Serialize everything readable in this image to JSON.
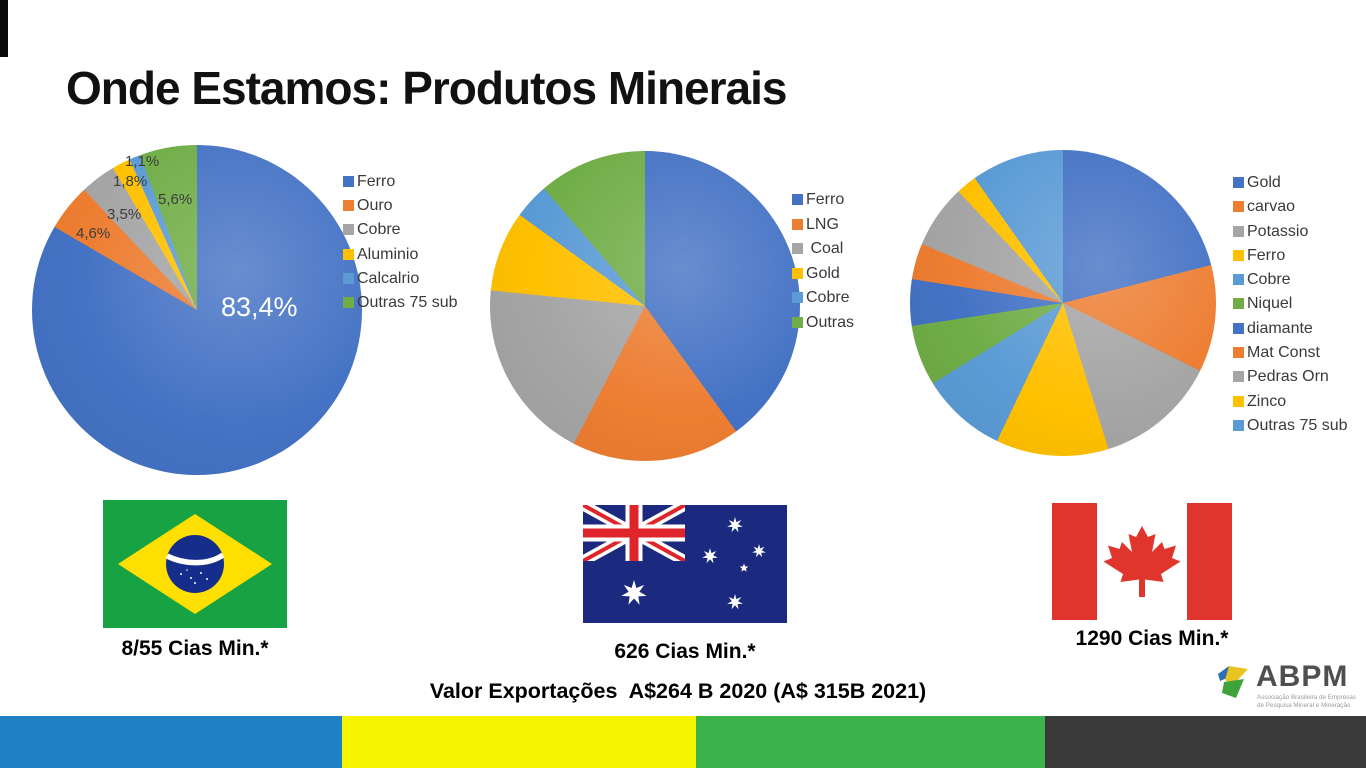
{
  "title": "Onde Estamos: Produtos Minerais",
  "chart_data": [
    {
      "type": "pie",
      "country": "Brasil",
      "legend_position": "right",
      "slices": [
        {
          "label": "Ferro",
          "value": 83.4,
          "color": "#4472C4"
        },
        {
          "label": "Ouro",
          "value": 4.6,
          "color": "#ED7D31"
        },
        {
          "label": "Cobre",
          "value": 3.5,
          "color": "#A5A5A5"
        },
        {
          "label": "Aluminio",
          "value": 1.8,
          "color": "#FFC000"
        },
        {
          "label": "Calcalrio",
          "value": 1.1,
          "color": "#5B9BD5"
        },
        {
          "label": "Outras 75 sub",
          "value": 5.6,
          "color": "#70AD47"
        }
      ],
      "point_labels": [
        "83,4%",
        "4,6%",
        "3,5%",
        "1,8%",
        "1,1%",
        "5,6%"
      ]
    },
    {
      "type": "pie",
      "country": "Austrália",
      "legend_position": "right",
      "slices": [
        {
          "label": "Ferro",
          "value": 40.0,
          "color": "#4472C4"
        },
        {
          "label": "LNG",
          "value": 17.6,
          "color": "#ED7D31"
        },
        {
          "label": " Coal",
          "value": 19.0,
          "color": "#A5A5A5"
        },
        {
          "label": "Gold",
          "value": 8.4,
          "color": "#FFC000"
        },
        {
          "label": "Cobre",
          "value": 3.7,
          "color": "#5B9BD5"
        },
        {
          "label": "Outras",
          "value": 11.3,
          "color": "#70AD47"
        }
      ]
    },
    {
      "type": "pie",
      "country": "Canadá",
      "legend_position": "right",
      "slices": [
        {
          "label": "Gold",
          "value": 21.0,
          "color": "#4472C4"
        },
        {
          "label": "carvao",
          "value": 11.3,
          "color": "#ED7D31"
        },
        {
          "label": "Potassio",
          "value": 12.9,
          "color": "#A5A5A5"
        },
        {
          "label": "Ferro",
          "value": 11.9,
          "color": "#FFC000"
        },
        {
          "label": "Cobre",
          "value": 9.1,
          "color": "#5B9BD5"
        },
        {
          "label": "Niquel",
          "value": 6.4,
          "color": "#70AD47"
        },
        {
          "label": "diamante",
          "value": 4.9,
          "color": "#4472C4"
        },
        {
          "label": "Mat Const",
          "value": 3.8,
          "color": "#ED7D31"
        },
        {
          "label": "Pedras Orn",
          "value": 6.7,
          "color": "#A5A5A5"
        },
        {
          "label": "Zinco",
          "value": 2.2,
          "color": "#FFC000"
        },
        {
          "label": "Outras 75 sub",
          "value": 9.8,
          "color": "#5B9BD5"
        }
      ]
    }
  ],
  "countries": [
    {
      "flag": "brazil-flag",
      "caption": "8/55 Cias Min.*"
    },
    {
      "flag": "australia-flag",
      "caption": "626 Cias Min.*"
    },
    {
      "flag": "canada-flag",
      "caption": "1290 Cias Min.*"
    }
  ],
  "footer": {
    "note": "Valor Exportações  A$264 B 2020 (A$ 315B 2021)"
  },
  "logo": {
    "text": "ABPM",
    "tagline_line1": "Associação Brasileira de Empresas",
    "tagline_line2": "de Pesquisa Mineral e Mineração"
  },
  "footer_bar": {
    "colors": [
      "#1F81C4",
      "#F7F400",
      "#3CB44B",
      "#3B3A3A"
    ]
  }
}
